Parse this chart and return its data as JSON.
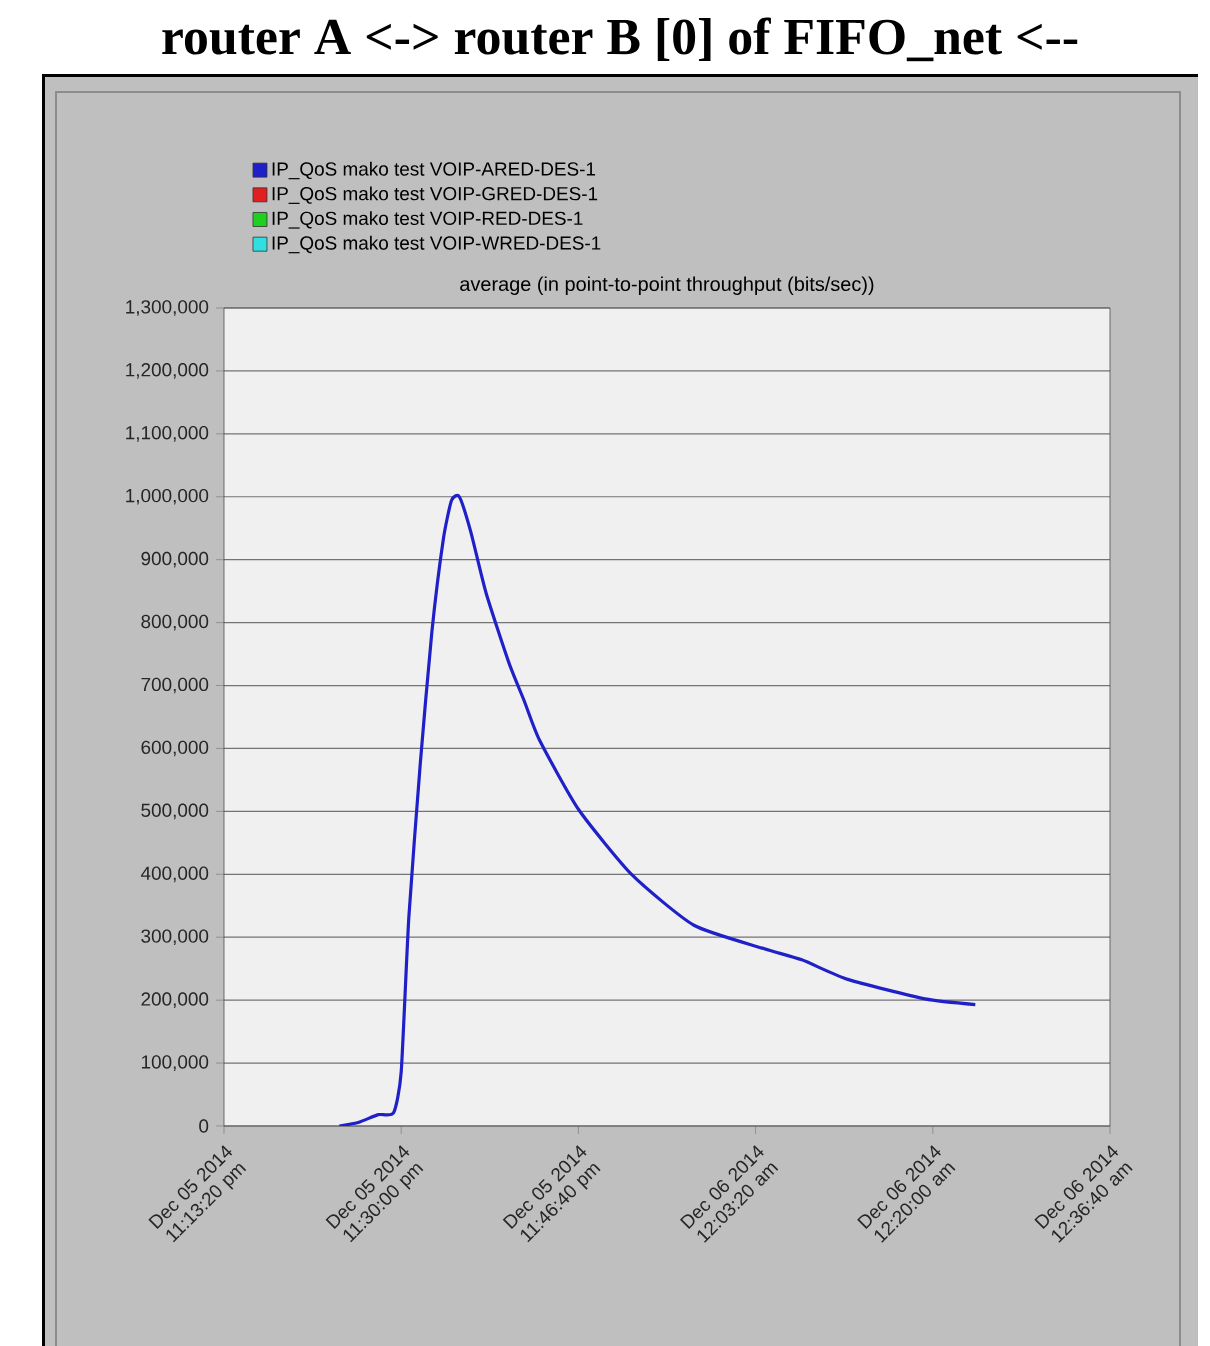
{
  "chart_data": {
    "type": "line",
    "title": "router A <-> router B [0] of FIFO_net <--",
    "subtitle": "average (in point-to-point throughput (bits/sec))",
    "xlim": [
      "2014-12-05T23:13:20",
      "2014-12-06T00:36:40"
    ],
    "xticks": [
      {
        "value": "2014-12-05T23:13:20",
        "label": "Dec 05 2014 11:13:20 pm"
      },
      {
        "value": "2014-12-05T23:30:00",
        "label": "Dec 05 2014 11:30:00 pm"
      },
      {
        "value": "2014-12-05T23:46:40",
        "label": "Dec 05 2014 11:46:40 pm"
      },
      {
        "value": "2014-12-06T00:03:20",
        "label": "Dec 06 2014 12:03:20 am"
      },
      {
        "value": "2014-12-06T00:20:00",
        "label": "Dec 06 2014 12:20:00 am"
      },
      {
        "value": "2014-12-06T00:36:40",
        "label": "Dec 06 2014 12:36:40 am"
      }
    ],
    "ylim": [
      0,
      1300000
    ],
    "yticks": [
      {
        "value": 0,
        "label": "0"
      },
      {
        "value": 100000,
        "label": "100,000"
      },
      {
        "value": 200000,
        "label": "200,000"
      },
      {
        "value": 300000,
        "label": "300,000"
      },
      {
        "value": 400000,
        "label": "400,000"
      },
      {
        "value": 500000,
        "label": "500,000"
      },
      {
        "value": 600000,
        "label": "600,000"
      },
      {
        "value": 700000,
        "label": "700,000"
      },
      {
        "value": 800000,
        "label": "800,000"
      },
      {
        "value": 900000,
        "label": "900,000"
      },
      {
        "value": 1000000,
        "label": "1,000,000"
      },
      {
        "value": 1100000,
        "label": "1,100,000"
      },
      {
        "value": 1200000,
        "label": "1,200,000"
      },
      {
        "value": 1300000,
        "label": "1,300,000"
      }
    ],
    "grid": "y",
    "legend": "top",
    "line_style": "solid",
    "series": [
      {
        "name": "IP_QoS mako test VOIP-ARED-DES-1",
        "color": "#2020c8",
        "x": [
          "2014-12-05T23:24:11",
          "2014-12-05T23:26:02",
          "2014-12-05T23:27:50",
          "2014-12-05T23:29:17",
          "2014-12-05T23:30:00",
          "2014-12-05T23:30:43",
          "2014-12-05T23:31:48",
          "2014-12-05T23:32:53",
          "2014-12-05T23:33:58",
          "2014-12-05T23:34:44",
          "2014-12-05T23:35:28",
          "2014-12-05T23:36:32",
          "2014-12-05T23:37:59",
          "2014-12-05T23:40:08",
          "2014-12-05T23:41:35",
          "2014-12-05T23:43:01",
          "2014-12-05T23:46:41",
          "2014-12-05T23:51:43",
          "2014-12-05T23:57:32",
          "2014-12-06T00:04:05",
          "2014-12-06T00:07:41",
          "2014-12-06T00:12:00",
          "2014-12-06T00:19:16",
          "2014-12-06T00:24:00"
        ],
        "values": [
          0,
          6000,
          18000,
          21000,
          86000,
          331000,
          577000,
          785000,
          933000,
          994000,
          1000000,
          945000,
          847000,
          736000,
          675000,
          613000,
          503000,
          399000,
          319000,
          282000,
          264000,
          233000,
          202000,
          193000
        ]
      },
      {
        "name": "IP_QoS mako test VOIP-GRED-DES-1",
        "color": "#e02020"
      },
      {
        "name": "IP_QoS mako test VOIP-RED-DES-1",
        "color": "#20d020"
      },
      {
        "name": "IP_QoS mako test VOIP-WRED-DES-1",
        "color": "#30e0e0"
      }
    ]
  }
}
